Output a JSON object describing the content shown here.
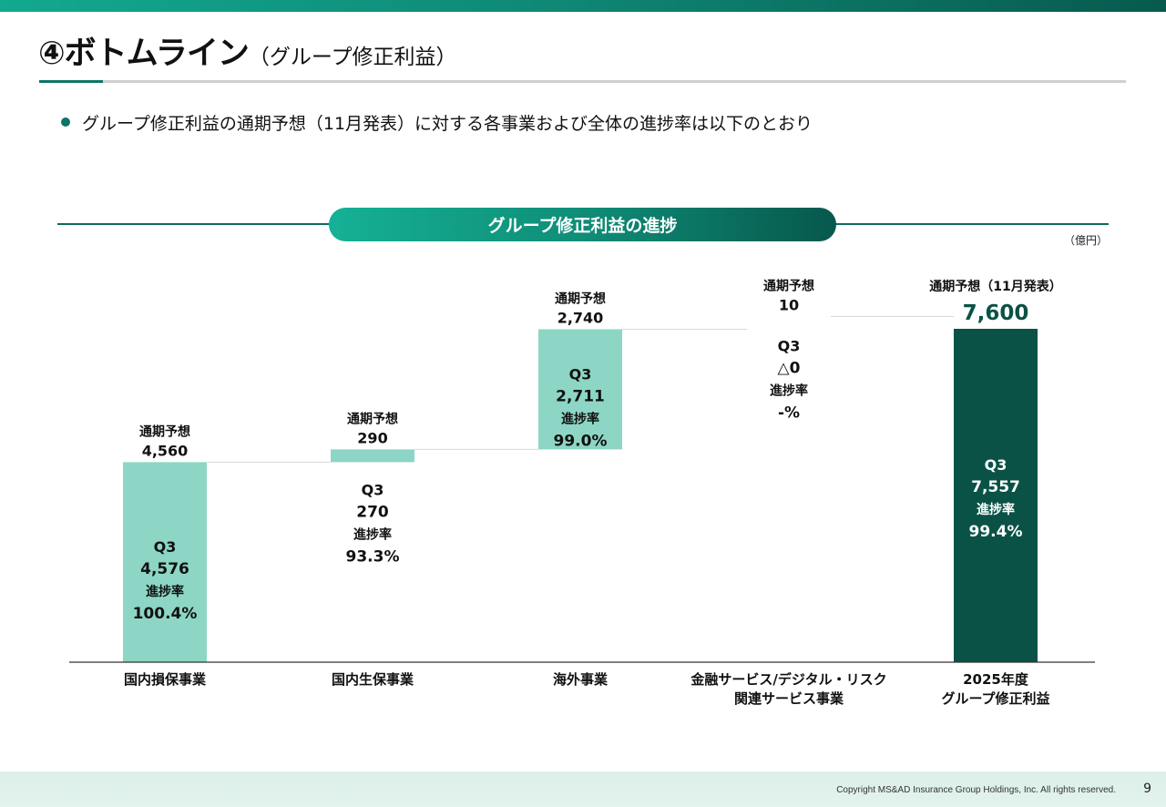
{
  "header": {
    "title": "④ボトムライン",
    "subtitle": "（グループ修正利益）"
  },
  "bullet": "グループ修正利益の通期予想（11月発表）に対する各事業および全体の進捗率は以下のとおり",
  "banner": "グループ修正利益の進捗",
  "unit": "（億円）",
  "chart_data": {
    "type": "waterfall",
    "title": "グループ修正利益の進捗",
    "unit": "億円",
    "ylim": [
      0,
      7600
    ],
    "categories": [
      "国内損保事業",
      "国内生保事業",
      "海外事業",
      "金融サービス/デジタル・リスク\n関連サービス事業",
      "2025年度\nグループ修正利益"
    ],
    "forecast_label": "通期予想",
    "total_forecast_label": "通期予想（11月発表）",
    "q3_label": "Q3",
    "progress_label": "進捗率",
    "bars": [
      {
        "category": "国内損保事業",
        "start": 0,
        "forecast": 4560,
        "forecast_text": "4,560",
        "q3": 4576,
        "q3_text": "4,576",
        "progress": "100.4%"
      },
      {
        "category": "国内生保事業",
        "start": 4560,
        "forecast": 290,
        "forecast_text": "290",
        "q3": 270,
        "q3_text": "270",
        "progress": "93.3%"
      },
      {
        "category": "海外事業",
        "start": 4850,
        "forecast": 2740,
        "forecast_text": "2,740",
        "q3": 2711,
        "q3_text": "2,711",
        "progress": "99.0%"
      },
      {
        "category": "金融サービス/デジタル・リスク関連サービス事業",
        "start": 7590,
        "forecast": 10,
        "forecast_text": "10",
        "q3": 0,
        "q3_text": "△0",
        "progress": "-%"
      },
      {
        "category": "2025年度グループ修正利益",
        "start": 0,
        "forecast": 7600,
        "forecast_text": "7,600",
        "q3": 7557,
        "q3_text": "7,557",
        "progress": "99.4%",
        "total": true
      }
    ],
    "colors": {
      "segment": "#8dd6c5",
      "total": "#0a5246",
      "total_value": "#0a5246",
      "connector": "#d9d9d9",
      "axis": "#333333"
    }
  },
  "footer": {
    "copyright": "Copyright MS&AD Insurance Group Holdings, Inc. All rights reserved.",
    "page": "9"
  }
}
